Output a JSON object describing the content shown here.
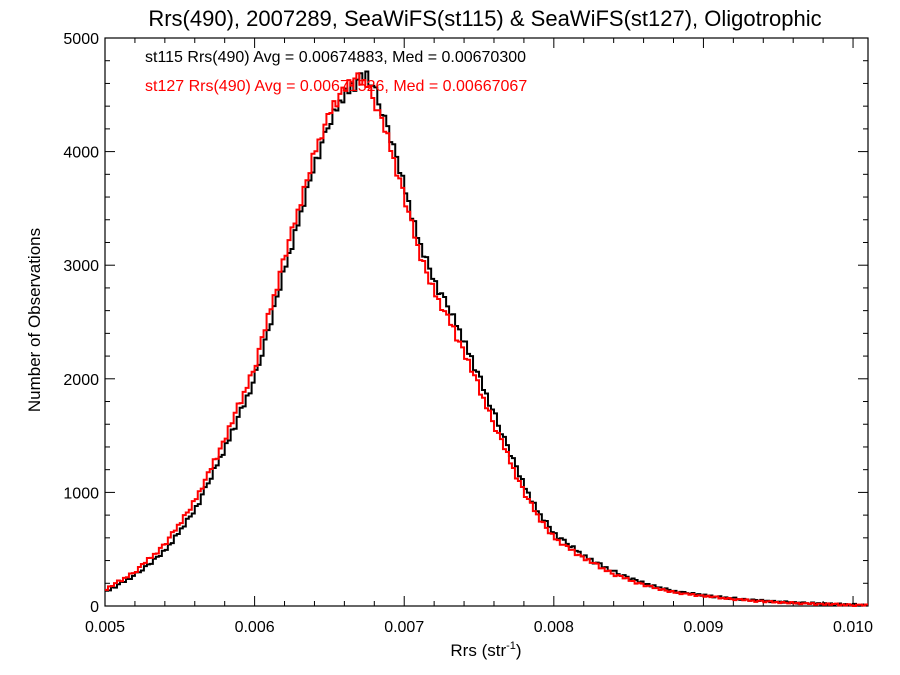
{
  "chart_data": {
    "type": "line",
    "step": true,
    "title": "Rrs(490), 2007289, SeaWiFS(st115) & SeaWiFS(st127), Oligotrophic",
    "xlabel_main": "Rrs (str",
    "xlabel_sup": "-1",
    "xlabel_end": ")",
    "ylabel": "Number of Observations",
    "xlim": [
      0.005,
      0.0101
    ],
    "ylim": [
      0,
      5000
    ],
    "xticks": [
      0.005,
      0.006,
      0.007,
      0.008,
      0.009,
      0.01
    ],
    "xtick_labels": [
      "0.005",
      "0.006",
      "0.007",
      "0.008",
      "0.009",
      "0.010"
    ],
    "yticks": [
      0,
      1000,
      2000,
      3000,
      4000,
      5000
    ],
    "ytick_labels": [
      "0",
      "1000",
      "2000",
      "3000",
      "4000",
      "5000"
    ],
    "grid": false,
    "annotations": [
      {
        "text": "st115 Rrs(490) Avg = 0.00674883, Med = 0.00670300",
        "color": "#000000"
      },
      {
        "text": "st127 Rrs(490) Avg = 0.00671526, Med = 0.00667067",
        "color": "#ff0000"
      }
    ],
    "bin_width": 2e-05,
    "series": [
      {
        "color": "#000000",
        "profile_x": [
          0.005,
          0.0052,
          0.0054,
          0.0056,
          0.0058,
          0.006,
          0.0062,
          0.0064,
          0.0065,
          0.0066,
          0.0067,
          0.00675,
          0.0068,
          0.0069,
          0.007,
          0.0071,
          0.0072,
          0.0073,
          0.0074,
          0.0075,
          0.0076,
          0.0077,
          0.0078,
          0.0079,
          0.008,
          0.0082,
          0.0084,
          0.0086,
          0.0088,
          0.009,
          0.0092,
          0.0094,
          0.0096,
          0.0098,
          0.01,
          0.0101
        ],
        "profile_y": [
          120,
          270,
          480,
          840,
          1380,
          1990,
          2950,
          3880,
          4250,
          4500,
          4630,
          4680,
          4540,
          4180,
          3690,
          3210,
          2860,
          2620,
          2330,
          2020,
          1690,
          1380,
          1060,
          820,
          640,
          440,
          300,
          200,
          130,
          95,
          65,
          45,
          30,
          20,
          10,
          8
        ],
        "noise": [
          30,
          -18,
          26,
          -40,
          12,
          35,
          -22,
          18,
          -30,
          8,
          44,
          -12,
          -28,
          20,
          6,
          -36,
          24,
          14,
          -20,
          38,
          -8,
          16,
          -34,
          28,
          -16,
          10,
          -26,
          32,
          4,
          -14,
          22,
          -38,
          12,
          26,
          -6,
          -24,
          34,
          -10,
          18,
          -30
        ]
      },
      {
        "color": "#ff0000",
        "profile_x": [
          0.005,
          0.0052,
          0.0054,
          0.0056,
          0.0058,
          0.006,
          0.0062,
          0.0064,
          0.0065,
          0.0066,
          0.0067,
          0.00675,
          0.0068,
          0.0069,
          0.007,
          0.0071,
          0.0072,
          0.0073,
          0.0074,
          0.0075,
          0.0076,
          0.0077,
          0.0078,
          0.0079,
          0.008,
          0.0082,
          0.0084,
          0.0086,
          0.0088,
          0.009,
          0.0092,
          0.0094,
          0.0096,
          0.0098,
          0.01,
          0.0101
        ],
        "profile_y": [
          140,
          300,
          540,
          920,
          1460,
          2100,
          3070,
          3980,
          4340,
          4560,
          4640,
          4600,
          4450,
          4080,
          3600,
          3120,
          2760,
          2520,
          2230,
          1920,
          1600,
          1300,
          1000,
          780,
          600,
          420,
          280,
          185,
          120,
          88,
          60,
          40,
          26,
          16,
          8,
          6
        ],
        "noise": [
          -24,
          32,
          -14,
          20,
          40,
          -30,
          10,
          -22,
          28,
          -6,
          -36,
          18,
          24,
          -12,
          34,
          -20,
          6,
          -40,
          16,
          26,
          -28,
          12,
          30,
          -18,
          8,
          -34,
          22,
          -4,
          -26,
          36,
          -10,
          14,
          -32,
          4,
          20,
          -16,
          28,
          -38,
          10,
          18
        ]
      }
    ]
  }
}
